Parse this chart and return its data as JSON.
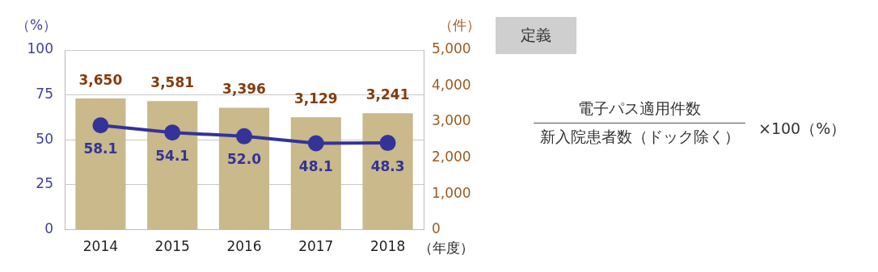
{
  "chart_data": {
    "type": "bar",
    "categories": [
      "2014",
      "2015",
      "2016",
      "2017",
      "2018"
    ],
    "xlabel": "（年度）",
    "ylabel": "（%）",
    "y2label": "（件）",
    "series": [
      {
        "axis": "y2",
        "color": "#c9b98b",
        "values": [
          3650,
          3581,
          3396,
          3129,
          3241
        ],
        "value_labels": [
          "3,650",
          "3,581",
          "3,396",
          "3,129",
          "3,241"
        ]
      },
      {
        "type": "line",
        "axis": "y",
        "color": "#333399",
        "values": [
          58.1,
          54.1,
          52.0,
          48.1,
          48.3
        ],
        "value_labels": [
          "58.1",
          "54.1",
          "52.0",
          "48.1",
          "48.3"
        ]
      }
    ],
    "ylim": [
      0,
      100
    ],
    "yticks": [
      0,
      25,
      50,
      75,
      100
    ],
    "y2lim": [
      0,
      5000
    ],
    "y2ticks": [
      {
        "value": 0,
        "label": "0"
      },
      {
        "value": 1000,
        "label": "1,000"
      },
      {
        "value": 2000,
        "label": "2,000"
      },
      {
        "value": 3000,
        "label": "3,000"
      },
      {
        "value": 4000,
        "label": "4,000"
      },
      {
        "value": 5000,
        "label": "5,000"
      }
    ],
    "grid": "y",
    "legend": false,
    "marker": "circle",
    "line_style": "solid",
    "annotations": [
      "定義",
      "電子パス適用件数",
      "新入院患者数（ドック除く）",
      "×100（%）"
    ]
  }
}
